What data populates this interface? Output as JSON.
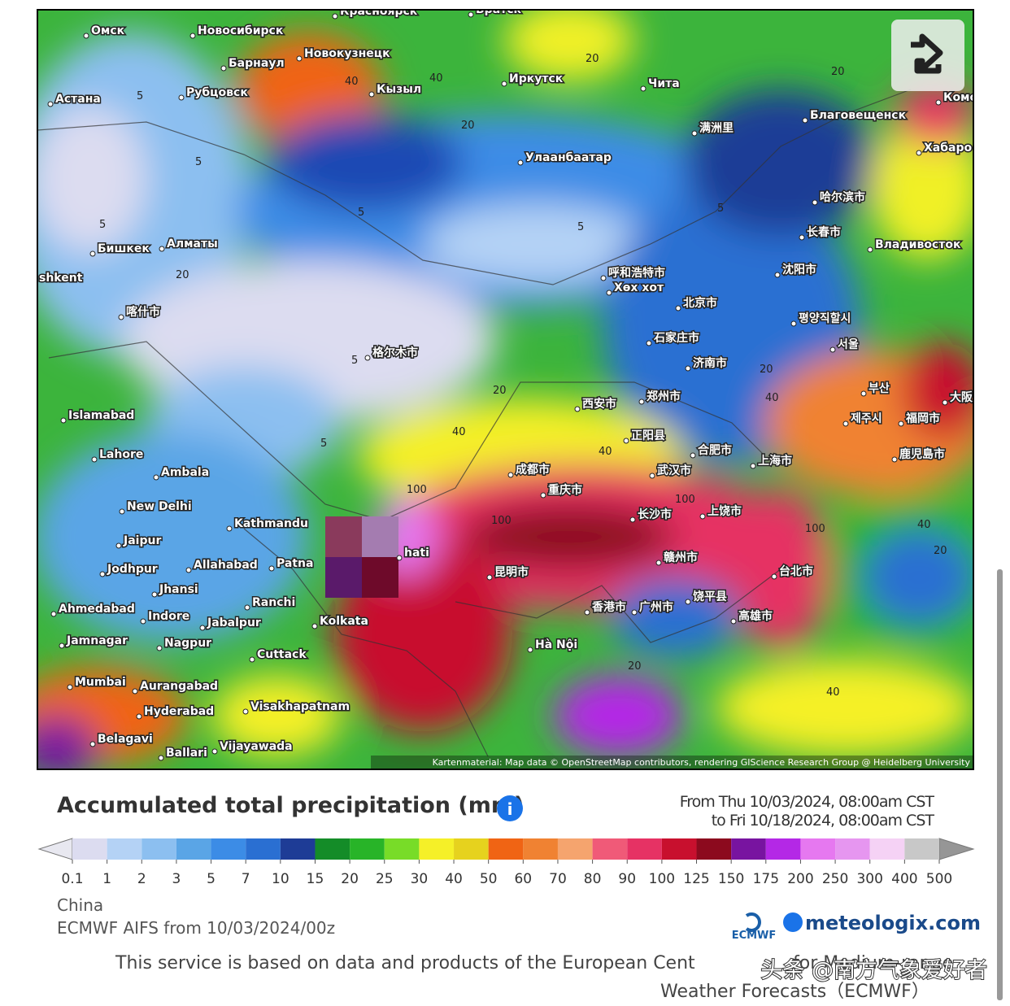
{
  "map": {
    "labels": [
      "Омск",
      "Новосибирск",
      "Красноярск",
      "Братск",
      "Барнаул",
      "Новокузнецк",
      "Кызыл",
      "Иркутск",
      "Чита",
      "Астана",
      "Рубцовск",
      "Улаанбаатар",
      "Благовещенск",
      "满洲里",
      "Хабаро",
      "Комс",
      "哈尔滨市",
      "长春市",
      "Владивосток",
      "Бишкек",
      "Алматы",
      "呼和浩特市",
      "Хөх хот",
      "沈阳市",
      "shkent",
      "北京市",
      "평양직할시",
      "喀什市",
      "石家庄市",
      "서울",
      "格尔木市",
      "济南市",
      "西安市",
      "郑州市",
      "부산",
      "大阪",
      "Islamabad",
      "제주시",
      "福岡市",
      "正阳县",
      "合肥市",
      "Lahore",
      "Ambala",
      "上海市",
      "鹿児島市",
      "成都市",
      "武汉市",
      "重庆市",
      "New Delhi",
      "长沙市",
      "上饶市",
      "Kathmandu",
      "Jaipur",
      "hati",
      "昆明市",
      "赣州市",
      "台北市",
      "Jodhpur",
      "Allahabad",
      "Patna",
      "Jhansi",
      "Ranchi",
      "Ahmedabad",
      "Indore",
      "Jabalpur",
      "香港市",
      "广州市",
      "饶平县",
      "高雄市",
      "Kolkata",
      "Jamnagar",
      "Nagpur",
      "Hà Nội",
      "Cuttack",
      "Mumbai",
      "Aurangabad",
      "Visakhapatnam",
      "Hyderabad",
      "Belagavi",
      "Vijayawada",
      "Ballari"
    ],
    "contour_labels": [
      "5",
      "5",
      "5",
      "5",
      "5",
      "5",
      "5",
      "5",
      "20",
      "20",
      "20",
      "20",
      "20",
      "20",
      "40",
      "40",
      "40",
      "40",
      "40",
      "100",
      "100",
      "100",
      "100",
      "40",
      "20",
      "40",
      "20"
    ],
    "attribution": "Kartenmaterial: Map data © OpenStreetMap contributors, rendering GIScience Research Group @ Heidelberg University"
  },
  "legend": {
    "title": "Accumulated total precipitation (mm)",
    "info_icon": "i",
    "period_from": "From Thu 10/03/2024, 08:00am CST",
    "period_to": "to Fri 10/18/2024, 08:00am CST",
    "ticks": [
      0.1,
      1,
      2,
      3,
      5,
      7,
      10,
      15,
      20,
      25,
      30,
      40,
      50,
      60,
      70,
      80,
      90,
      100,
      125,
      150,
      175,
      200,
      250,
      300,
      400,
      500
    ],
    "colors": [
      "#dcdcf0",
      "#b4d2f5",
      "#8cbff0",
      "#5aa5e6",
      "#3c8ce6",
      "#2a6fd2",
      "#1e3c96",
      "#148c28",
      "#28b428",
      "#78dc28",
      "#f5f028",
      "#e6d21e",
      "#f06414",
      "#f08232",
      "#f5a46e",
      "#f05a78",
      "#e63264",
      "#c8102e",
      "#8c0a1e",
      "#7814a0",
      "#b428e6",
      "#e678f0",
      "#e696f0",
      "#f5d2f5",
      "#c8c8c8"
    ],
    "under_color": "#e8e8f0",
    "over_color": "#969696"
  },
  "footer": {
    "region": "China",
    "model": "ECMWF AIFS from 10/03/2024/00z",
    "ecmwf_logo": "ECMWF",
    "brand": "meteologix.com",
    "notice_line1": "This service is based on data and products of the European Cent",
    "notice_obscured": "for Medium-range",
    "notice_line2": "Weather Forecasts（ECMWF）",
    "watermark": "头条 @南方气象爱好者"
  }
}
